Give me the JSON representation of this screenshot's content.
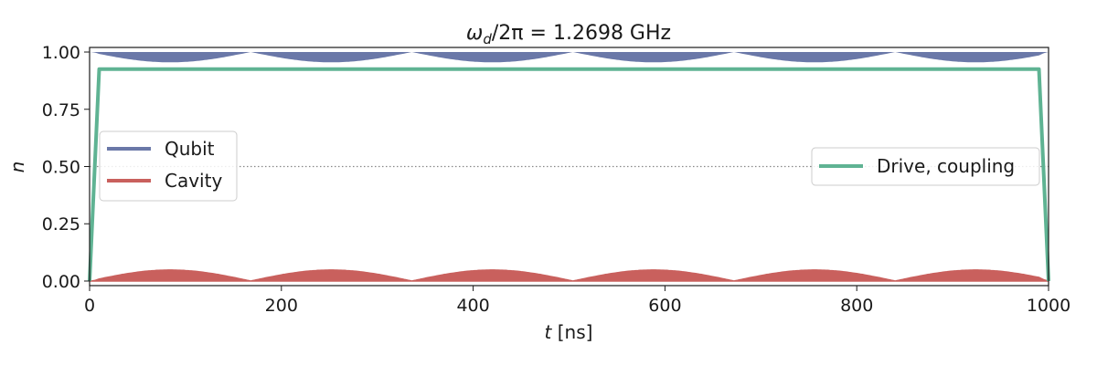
{
  "chart_data": {
    "type": "line",
    "title_parts": {
      "omega": "ω",
      "sub": "d",
      "rest": "/2π = 1.2698 GHz"
    },
    "xlabel_parts": {
      "var": "t",
      "unit": " [ns]"
    },
    "ylabel": "n",
    "xlim": [
      0,
      1000
    ],
    "ylim": [
      -0.02,
      1.02
    ],
    "xticks": [
      0,
      200,
      400,
      600,
      800,
      1000
    ],
    "xtick_labels": [
      "0",
      "200",
      "400",
      "600",
      "800",
      "1000"
    ],
    "yticks": [
      0.0,
      0.25,
      0.5,
      0.75,
      1.0
    ],
    "ytick_labels": [
      "0.00",
      "0.25",
      "0.50",
      "0.75",
      "1.00"
    ],
    "reference_line": {
      "y": 0.5,
      "style": "dotted",
      "color": "#888888"
    },
    "series": [
      {
        "name": "Qubit",
        "color": "#6a78a8",
        "kind": "band",
        "upper": 1.0,
        "lower_min": 0.955,
        "period": 168,
        "rise_time": 10,
        "fall_start": 990
      },
      {
        "name": "Cavity",
        "color": "#c9605d",
        "kind": "band",
        "lower": 0.0,
        "upper_max": 0.048,
        "period": 168,
        "rise_time": 10,
        "fall_start": 990
      },
      {
        "name": "Drive, coupling",
        "color": "#5fb393",
        "kind": "pulse",
        "x": [
          0,
          10,
          990,
          1000
        ],
        "y": [
          0.0,
          0.925,
          0.925,
          0.0
        ]
      }
    ],
    "legends": [
      {
        "placement": "center-left",
        "entries": [
          "Qubit",
          "Cavity"
        ]
      },
      {
        "placement": "center-right",
        "entries": [
          "Drive, coupling"
        ]
      }
    ]
  }
}
